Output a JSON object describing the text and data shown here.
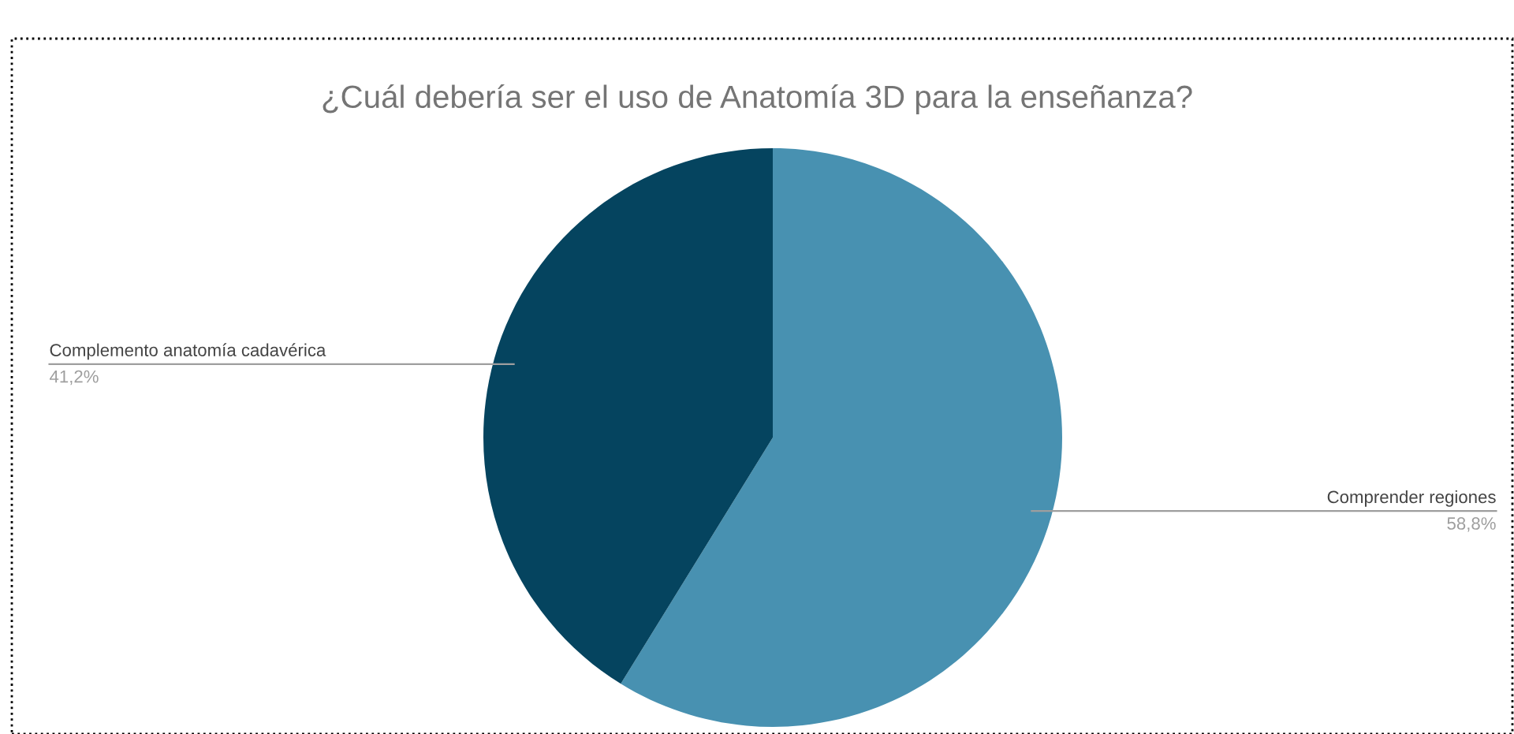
{
  "chart_data": {
    "type": "pie",
    "title": "¿Cuál debería ser el uso de Anatomía 3D para la enseñanza?",
    "categories": [
      "Comprender regiones",
      "Complemento anatomía cadavérica"
    ],
    "values": [
      58.8,
      41.2
    ],
    "colors": [
      "#4891b1",
      "#05445f"
    ],
    "value_labels": [
      "58,8%",
      "41,2%"
    ],
    "legend": false
  }
}
